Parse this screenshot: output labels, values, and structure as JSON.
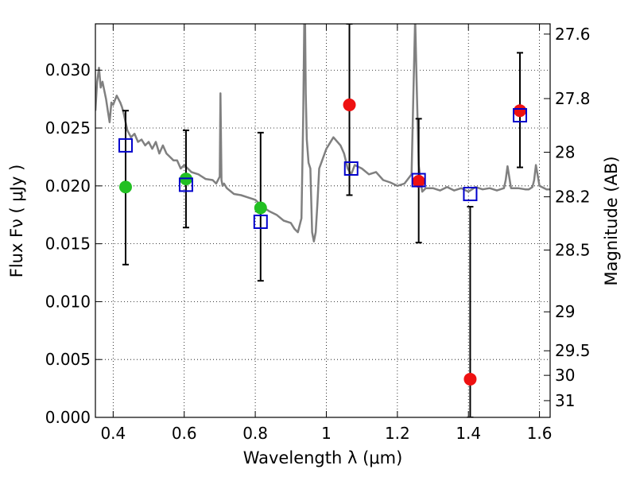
{
  "chart_data": {
    "type": "scatter",
    "xlabel": "Wavelength  λ (μm)",
    "ylabel_left": "Flux  Fν  ( μJy )",
    "ylabel_right": "Magnitude (AB)",
    "xlim": [
      0.35,
      1.63
    ],
    "ylim": [
      0.0,
      0.034
    ],
    "grid": true,
    "x_ticks": [
      0.4,
      0.6,
      0.8,
      1.0,
      1.2,
      1.4,
      1.6
    ],
    "x_tick_labels": [
      "0.4",
      "0.6",
      "0.8",
      "1",
      "1.2",
      "1.4",
      "1.6"
    ],
    "y_ticks": [
      0.0,
      0.005,
      0.01,
      0.015,
      0.02,
      0.025,
      0.03
    ],
    "y_tick_labels": [
      "0.000",
      "0.005",
      "0.010",
      "0.015",
      "0.020",
      "0.025",
      "0.030"
    ],
    "mag_ticks": [
      27.6,
      27.8,
      28,
      28.2,
      28.5,
      29,
      29.5,
      30,
      31
    ],
    "mag_tick_labels": [
      "27.6",
      "27.8",
      "28",
      "28.2",
      "28.5",
      "29",
      "29.5",
      "30",
      "31"
    ],
    "colors": {
      "model": "#808080",
      "model_points": "#0000cc",
      "green_points": "#22c022",
      "red_points": "#ee1111",
      "error_bars": "#000000"
    },
    "series": [
      {
        "marker": "line",
        "x": [
          0.35,
          0.355,
          0.36,
          0.365,
          0.37,
          0.38,
          0.385,
          0.39,
          0.395,
          0.4,
          0.41,
          0.42,
          0.425,
          0.43,
          0.435,
          0.44,
          0.445,
          0.45,
          0.46,
          0.47,
          0.48,
          0.49,
          0.5,
          0.51,
          0.52,
          0.53,
          0.54,
          0.55,
          0.56,
          0.57,
          0.58,
          0.59,
          0.6,
          0.62,
          0.64,
          0.66,
          0.68,
          0.69,
          0.7,
          0.702,
          0.705,
          0.708,
          0.712,
          0.72,
          0.74,
          0.76,
          0.78,
          0.8,
          0.82,
          0.84,
          0.86,
          0.88,
          0.9,
          0.91,
          0.92,
          0.93,
          0.935,
          0.938,
          0.94,
          0.942,
          0.945,
          0.95,
          0.955,
          0.96,
          0.965,
          0.97,
          0.975,
          0.98,
          1.0,
          1.02,
          1.04,
          1.05,
          1.06,
          1.07,
          1.08,
          1.1,
          1.12,
          1.14,
          1.16,
          1.18,
          1.2,
          1.22,
          1.24,
          1.245,
          1.25,
          1.255,
          1.26,
          1.265,
          1.27,
          1.28,
          1.3,
          1.32,
          1.34,
          1.36,
          1.38,
          1.4,
          1.42,
          1.44,
          1.46,
          1.48,
          1.5,
          1.5,
          1.505,
          1.51,
          1.52,
          1.54,
          1.56,
          1.57,
          1.58,
          1.585,
          1.59,
          1.6,
          1.62,
          1.63
        ],
        "y": [
          0.0265,
          0.029,
          0.0302,
          0.0285,
          0.029,
          0.0275,
          0.0265,
          0.0255,
          0.0272,
          0.027,
          0.0278,
          0.0272,
          0.0268,
          0.0262,
          0.0255,
          0.0248,
          0.0245,
          0.0242,
          0.0245,
          0.0238,
          0.024,
          0.0235,
          0.0238,
          0.0232,
          0.0238,
          0.0228,
          0.0235,
          0.0228,
          0.0225,
          0.0222,
          0.0222,
          0.0215,
          0.0218,
          0.0212,
          0.021,
          0.0206,
          0.0205,
          0.0202,
          0.0208,
          0.028,
          0.0205,
          0.02,
          0.0202,
          0.0198,
          0.0193,
          0.0192,
          0.019,
          0.0188,
          0.0182,
          0.0178,
          0.0175,
          0.017,
          0.0168,
          0.0163,
          0.016,
          0.0172,
          0.026,
          0.0345,
          0.0345,
          0.028,
          0.024,
          0.022,
          0.0215,
          0.016,
          0.0152,
          0.016,
          0.0185,
          0.0215,
          0.0232,
          0.0242,
          0.0235,
          0.0228,
          0.0215,
          0.021,
          0.0218,
          0.0215,
          0.021,
          0.0212,
          0.0205,
          0.0203,
          0.02,
          0.0202,
          0.021,
          0.028,
          0.0345,
          0.028,
          0.0218,
          0.0205,
          0.0195,
          0.0198,
          0.0198,
          0.0196,
          0.0199,
          0.0196,
          0.0198,
          0.0195,
          0.0199,
          0.0197,
          0.0198,
          0.0196,
          0.0198,
          0.0198,
          0.0205,
          0.0217,
          0.0198,
          0.0198,
          0.0197,
          0.0197,
          0.0199,
          0.0205,
          0.0218,
          0.02,
          0.0197,
          0.0197
        ]
      },
      {
        "marker": "square",
        "x": [
          0.435,
          0.605,
          0.815,
          1.07,
          1.26,
          1.405,
          1.545
        ],
        "y": [
          0.0235,
          0.0201,
          0.0169,
          0.0215,
          0.0205,
          0.0193,
          0.0261
        ]
      },
      {
        "marker": "circle",
        "x": [
          0.435,
          0.605,
          0.815
        ],
        "y": [
          0.0199,
          0.0206,
          0.0181
        ]
      },
      {
        "marker": "circle",
        "x": [
          1.065,
          1.26,
          1.405,
          1.545
        ],
        "y": [
          0.027,
          0.0204,
          0.0033,
          0.0265
        ]
      },
      {
        "marker": "errorbar",
        "x": [
          0.435,
          0.605,
          0.815,
          1.065,
          1.26,
          1.405,
          1.545
        ],
        "y_low": [
          0.0132,
          0.0164,
          0.0118,
          0.0192,
          0.0151,
          0.0,
          0.0216
        ],
        "y_high": [
          0.0265,
          0.0248,
          0.0246,
          0.034,
          0.0258,
          0.0182,
          0.0315
        ]
      }
    ]
  }
}
